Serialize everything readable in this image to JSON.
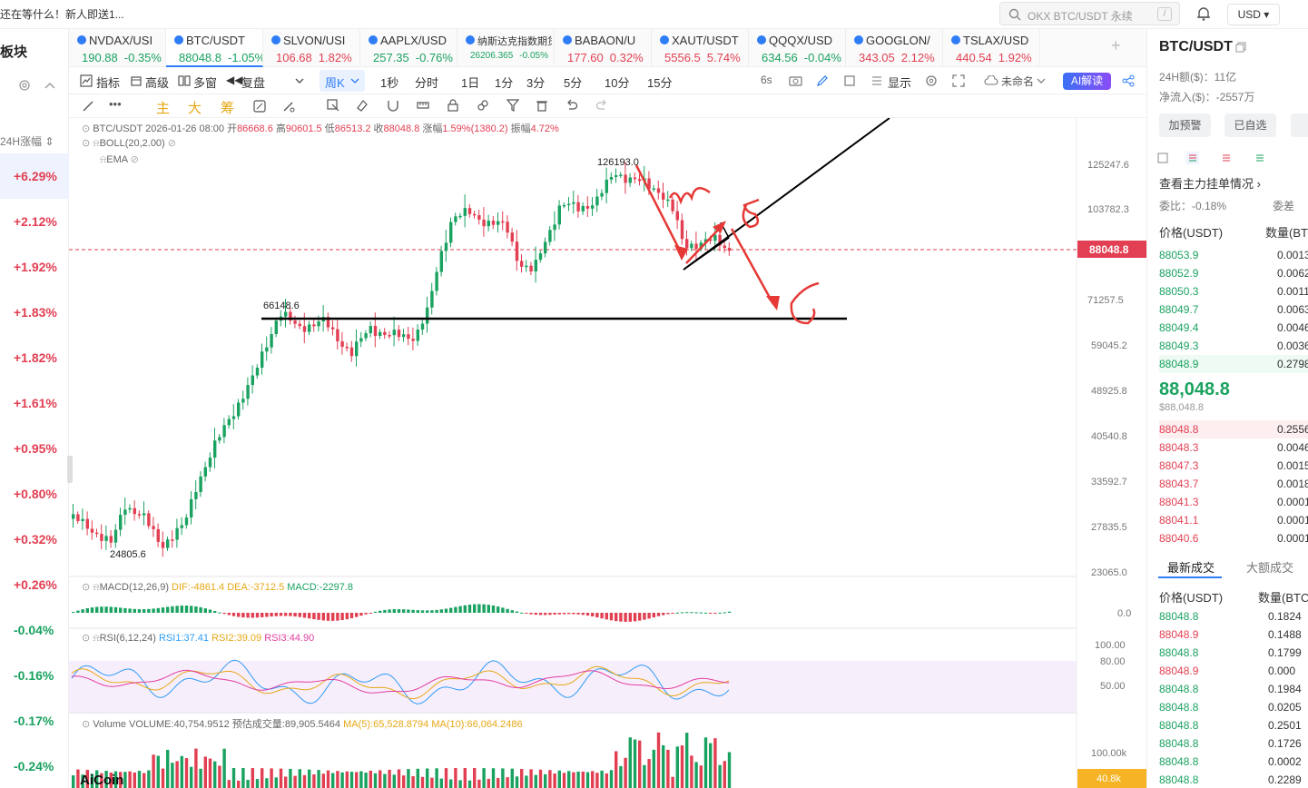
{
  "topbar": {
    "promo": "还在等什么！新人即送1...",
    "search_placeholder": "OKX BTC/USDT 永续",
    "search_kbd": "/",
    "currency": "USD ▾"
  },
  "left": {
    "title": "板块",
    "sort_label": "24H涨幅 ⇕",
    "changes": [
      "+6.29%",
      "+2.12%",
      "+1.92%",
      "+1.83%",
      "+1.82%",
      "+1.61%",
      "+0.95%",
      "+0.80%",
      "+0.32%",
      "+0.26%",
      "-0.04%",
      "-0.16%",
      "-0.17%",
      "-0.24%"
    ]
  },
  "tabs": [
    {
      "name": "NVDAX/USI",
      "price": "190.88",
      "change": "-0.35%",
      "up": false
    },
    {
      "name": "BTC/USDT",
      "price": "88048.8",
      "change": "-1.05%",
      "up": false
    },
    {
      "name": "SLVON/USI",
      "price": "106.68",
      "change": "1.82%",
      "up": true
    },
    {
      "name": "AAPLX/USD",
      "price": "257.35",
      "change": "-0.76%",
      "up": false
    },
    {
      "name": "纳斯达克指数期货",
      "price": "26206.365",
      "change": "-0.05%",
      "up": false
    },
    {
      "name": "BABAON/U",
      "price": "177.60",
      "change": "0.32%",
      "up": true
    },
    {
      "name": "XAUT/USDT",
      "price": "5556.5",
      "change": "5.74%",
      "up": true
    },
    {
      "name": "QQQX/USD",
      "price": "634.56",
      "change": "-0.04%",
      "up": false
    },
    {
      "name": "GOOGLON/",
      "price": "343.05",
      "change": "2.12%",
      "up": true
    },
    {
      "name": "TSLAX/USD",
      "price": "440.54",
      "change": "1.92%",
      "up": true
    }
  ],
  "toolbar": {
    "indicators": "指标",
    "advanced": "高级",
    "multi": "多窗",
    "replay": "复盘",
    "period": "周K",
    "intervals": [
      "1秒",
      "分时",
      "1日",
      "1分",
      "3分",
      "5分",
      "10分",
      "15分"
    ],
    "refresh": "6s",
    "display": "显示",
    "unnamed": "未命名",
    "ai": "AI解读"
  },
  "drawbar": {
    "main": "主",
    "big": "大",
    "chip": "筹"
  },
  "chart": {
    "info": "BTC/USDT 2026-01-26 08:00",
    "open_label": "开",
    "open": "86668.6",
    "high_label": "高",
    "high": "90601.5",
    "low_label": "低",
    "low": "86513.2",
    "close_label": "收",
    "close": "88048.8",
    "amp_label": "涨幅",
    "amp": "1.59%(1380.2)",
    "swing_label": "振幅",
    "swing": "4.72%",
    "boll": "BOLL(20,2.00)",
    "ema": "EMA",
    "yticks": [
      "125247.6",
      "103782.3",
      "71257.5",
      "59045.2",
      "48925.8",
      "40540.8",
      "33592.7",
      "27835.5",
      "23065.0"
    ],
    "price_tag": "88048.8",
    "peak_label": "126193.0",
    "level_label": "66148.6",
    "low_label_mark": "24805.6",
    "macd_label": "MACD(12,26,9)",
    "dif": "DIF:-4861.4",
    "dea": "DEA:-3712.5",
    "macd": "MACD:-2297.8",
    "macd_zero": "0.0",
    "rsi_label": "RSI(6,12,24)",
    "rsi1": "RSI1:37.41",
    "rsi2": "RSI2:39.09",
    "rsi3": "RSI3:44.90",
    "rsi_ticks": [
      "100.00",
      "80.00",
      "50.00"
    ],
    "vol_label": "Volume",
    "vol": "VOLUME:40,754.9512",
    "vol_est": "预估成交量:89,905.5464",
    "ma5": "MA(5):65,528.8794",
    "ma10": "MA(10):66,064.2486",
    "vol_ticks": [
      "100.00k",
      "40.8k"
    ],
    "watermark": "AiCoin"
  },
  "right": {
    "pair": "BTC/USDT",
    "vol24": "24H额($)：11亿",
    "netin": "净流入($)：-2557万",
    "alert": "加预警",
    "fav": "已自选",
    "depth_link": "查看主力挂单情况 ›",
    "ratio": "委比：-0.18%",
    "ratio2": "委差",
    "col_price": "价格(USDT)",
    "col_qty": "数量(BT",
    "asks": [
      [
        "88053.9",
        "0.0013"
      ],
      [
        "88052.9",
        "0.0062"
      ],
      [
        "88050.3",
        "0.0011"
      ],
      [
        "88049.7",
        "0.0063"
      ],
      [
        "88049.4",
        "0.0046"
      ],
      [
        "88049.3",
        "0.0036"
      ],
      [
        "88048.9",
        "0.2798"
      ]
    ],
    "last": "88,048.8",
    "last_sub": "$88,048.8",
    "bids": [
      [
        "88048.8",
        "0.2556"
      ],
      [
        "88048.3",
        "0.0046"
      ],
      [
        "88047.3",
        "0.0015"
      ],
      [
        "88043.7",
        "0.0018"
      ],
      [
        "88041.3",
        "0.0001"
      ],
      [
        "88041.1",
        "0.0001"
      ],
      [
        "88040.6",
        "0.0001"
      ]
    ],
    "trades_tab": "最新成交",
    "big_tab": "大额成交",
    "t_price": "价格(USDT)",
    "t_qty": "数量(BTC",
    "trades": [
      [
        "88048.8",
        "0.1824",
        "g"
      ],
      [
        "88048.9",
        "0.1488",
        "r"
      ],
      [
        "88048.8",
        "0.1799",
        "g"
      ],
      [
        "88048.9",
        "0.000",
        "r"
      ],
      [
        "88048.8",
        "0.1984",
        "g"
      ],
      [
        "88048.8",
        "0.0205",
        "g"
      ],
      [
        "88048.8",
        "0.2501",
        "g"
      ],
      [
        "88048.8",
        "0.1726",
        "g"
      ],
      [
        "88048.8",
        "0.0002",
        "g"
      ],
      [
        "88048.8",
        "0.2289",
        "g"
      ]
    ]
  }
}
